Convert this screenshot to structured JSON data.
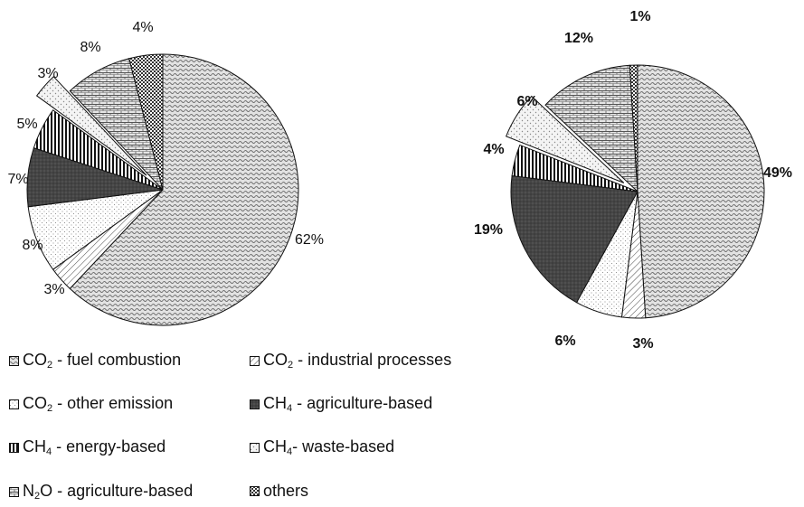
{
  "chart_data": [
    {
      "type": "pie",
      "start_angle_deg": 0,
      "direction": "clockwise",
      "exploded": "CH4 - waste-based",
      "slices": [
        {
          "name": "CO2 - fuel combustion",
          "value": 62,
          "label": "62%"
        },
        {
          "name": "CO2 - industrial processes",
          "value": 3,
          "label": "3%"
        },
        {
          "name": "CO2 - other emission",
          "value": 8,
          "label": "8%"
        },
        {
          "name": "CH4 - agriculture-based",
          "value": 7,
          "label": "7%"
        },
        {
          "name": "CH4 - energy-based",
          "value": 5,
          "label": "5%"
        },
        {
          "name": "CH4 - waste-based",
          "value": 3,
          "label": "3%"
        },
        {
          "name": "N2O - agriculture-based",
          "value": 8,
          "label": "8%"
        },
        {
          "name": "others",
          "value": 4,
          "label": "4%"
        }
      ]
    },
    {
      "type": "pie",
      "start_angle_deg": 0,
      "direction": "clockwise",
      "exploded": "CH4 - waste-based",
      "slices": [
        {
          "name": "CO2 - fuel combustion",
          "value": 49,
          "label": "49%"
        },
        {
          "name": "CO2 - industrial processes",
          "value": 3,
          "label": "3%"
        },
        {
          "name": "CO2 - other emission",
          "value": 6,
          "label": "6%"
        },
        {
          "name": "CH4 - agriculture-based",
          "value": 19,
          "label": "19%"
        },
        {
          "name": "CH4 - energy-based",
          "value": 4,
          "label": "4%"
        },
        {
          "name": "CH4 - waste-based",
          "value": 6,
          "label": "6%"
        },
        {
          "name": "N2O - agriculture-based",
          "value": 12,
          "label": "12%"
        },
        {
          "name": "others",
          "value": 1,
          "label": "1%"
        }
      ]
    }
  ],
  "legend": [
    {
      "pre": "CO",
      "sub": "2",
      "post": " - fuel combustion",
      "pattern": "wave",
      "color": "#d8d8d8"
    },
    {
      "pre": "CO",
      "sub": "2",
      "post": " - industrial processes",
      "pattern": "diag",
      "color": "#ffffff"
    },
    {
      "pre": "CO",
      "sub": "2",
      "post": " - other emission",
      "pattern": "dots",
      "color": "#ffffff"
    },
    {
      "pre": "CH",
      "sub": "4",
      "post": " - agriculture-based",
      "pattern": "dark",
      "color": "#4a4a4a"
    },
    {
      "pre": "CH",
      "sub": "4",
      "post": " - energy-based",
      "pattern": "vlines",
      "color": "#ffffff"
    },
    {
      "pre": "CH",
      "sub": "4",
      "post": "- waste-based",
      "pattern": "sparse",
      "color": "#f2f2f2"
    },
    {
      "pre": "N",
      "sub": "2",
      "post": "O - agriculture-based",
      "pattern": "brick",
      "color": "#e0e0e0"
    },
    {
      "pre": "others",
      "sub": "",
      "post": "",
      "pattern": "check",
      "color": "#666666"
    }
  ]
}
